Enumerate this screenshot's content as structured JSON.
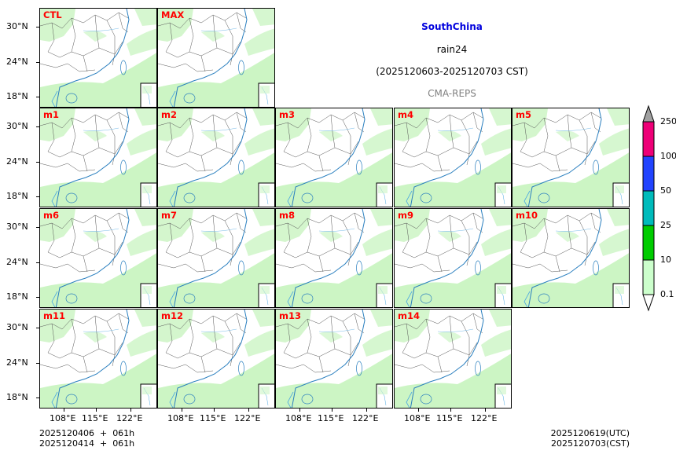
{
  "header": {
    "region": "SouthChina",
    "variable": "rain24",
    "period": "(2025120603-2025120703 CST)",
    "model": "CMA-REPS"
  },
  "panels": [
    "CTL",
    "MAX",
    "m1",
    "m2",
    "m3",
    "m4",
    "m5",
    "m6",
    "m7",
    "m8",
    "m9",
    "m10",
    "m11",
    "m12",
    "m13",
    "m14"
  ],
  "axes": {
    "lat_ticks": [
      "30°N",
      "24°N",
      "18°N"
    ],
    "lon_ticks": [
      "108°E",
      "115°E",
      "122°E"
    ]
  },
  "colorbar": {
    "levels": [
      "0.1",
      "10",
      "25",
      "50",
      "100",
      "250"
    ],
    "colors": [
      "#ccffcc",
      "#00cc00",
      "#00bbbb",
      "#2244ff",
      "#ee0077"
    ],
    "under_color": "#ffffff",
    "over_color": "#a0a0a0"
  },
  "footer": {
    "init_line1": "2025120406  +  061h",
    "init_line2": "2025120414  +  061h",
    "valid_utc": "2025120619(UTC)",
    "valid_cst": "2025120703(CST)"
  }
}
